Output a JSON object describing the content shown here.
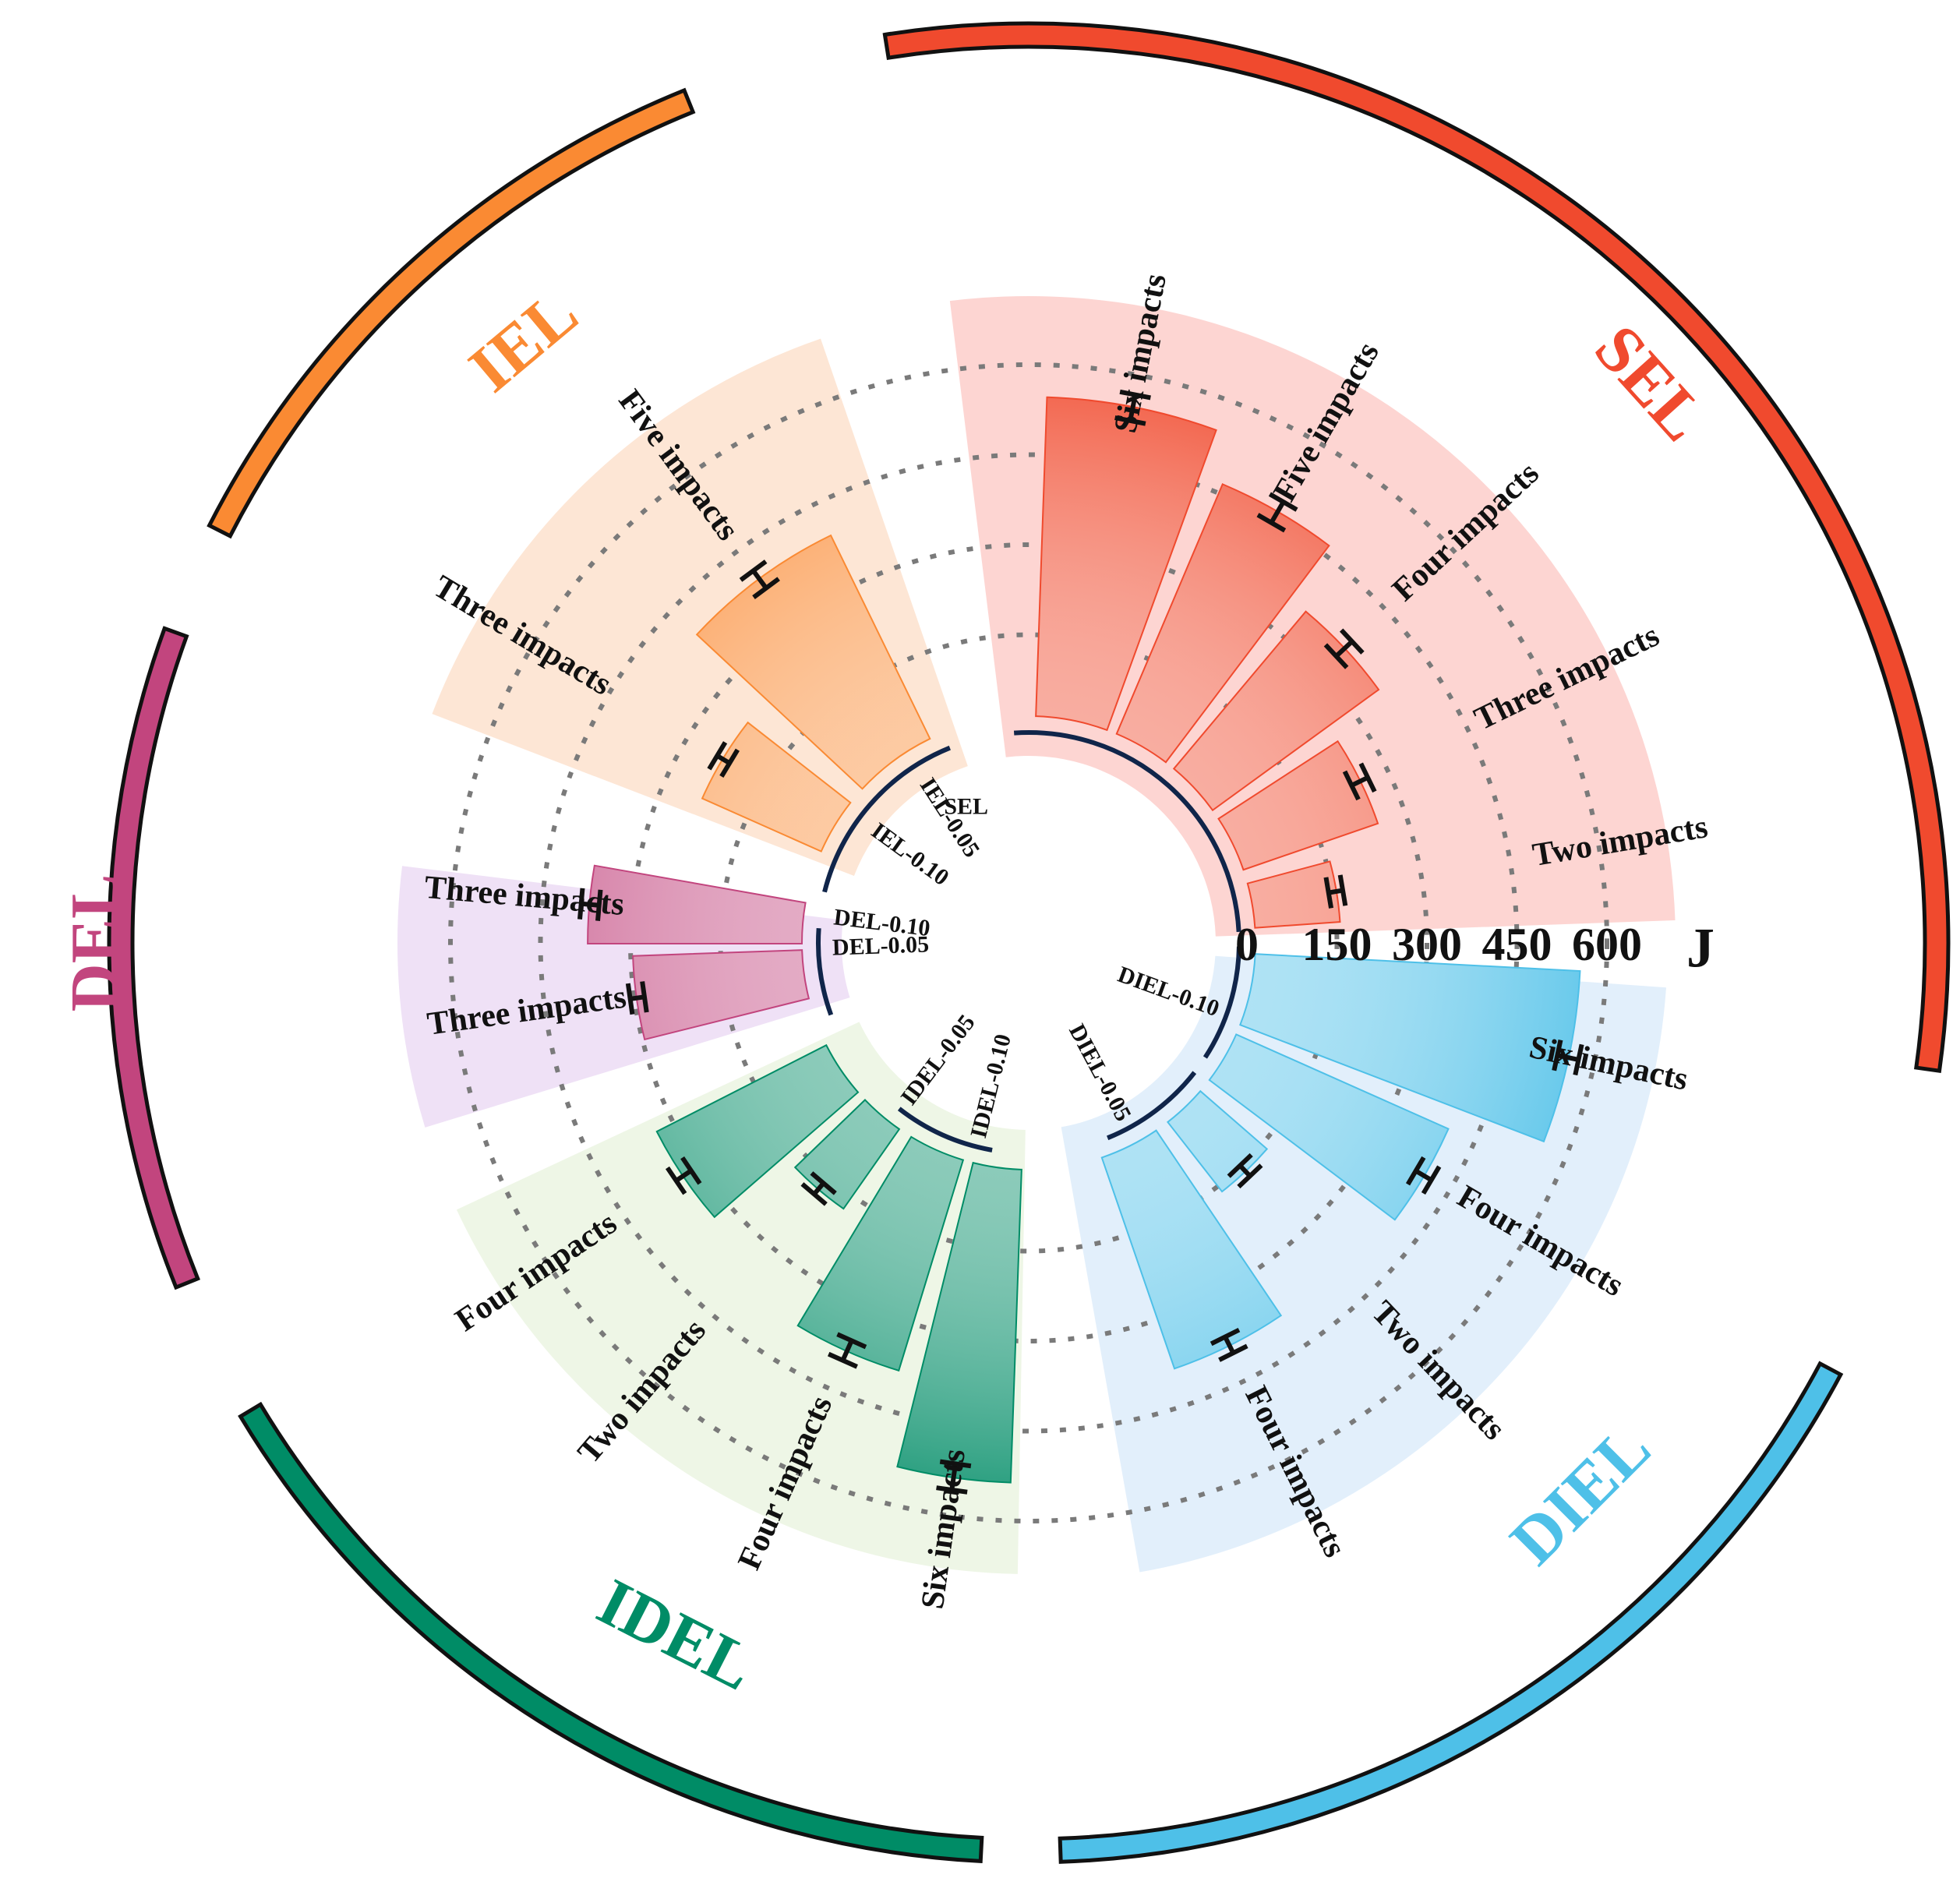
{
  "chart_data": {
    "type": "radial-bar",
    "unit_label": "J",
    "radial_ticks": [
      "0",
      "150",
      "300",
      "450",
      "600"
    ],
    "radial_tick_values": [
      0,
      150,
      300,
      450,
      600
    ],
    "grid": "dashed circles",
    "groups": [
      {
        "name": "SEL",
        "inner_labels": [
          "SEL"
        ],
        "color": "#F04A2E",
        "light_color": "#FDD3D0",
        "bars": [
          {
            "label": "Two impacts",
            "value": 155,
            "error": 12
          },
          {
            "label": "Three impacts",
            "value": 250,
            "error": 15
          },
          {
            "label": "Four impacts",
            "value": 355,
            "error": 18
          },
          {
            "label": "Five impacts",
            "value": 465,
            "error": 20
          },
          {
            "label": "Six impacts",
            "value": 545,
            "error": 22
          }
        ]
      },
      {
        "name": "DIEL",
        "inner_labels": [
          "DIEL-0.10",
          "DIEL-0.05"
        ],
        "color": "#4EC0E8",
        "light_color": "#E0EEFB",
        "bars": [
          {
            "label": "Six impacts",
            "value": 555,
            "error": 18
          },
          {
            "label": "Four impacts",
            "value": 400,
            "error": 15
          },
          {
            "label": "Two impacts",
            "value": 160,
            "error": 12
          },
          {
            "label": "Four impacts",
            "value": 385,
            "error": 15
          }
        ]
      },
      {
        "name": "IDEL",
        "inner_labels": [
          "IDEL-0.10",
          "IDEL-0.05"
        ],
        "color": "#008C66",
        "light_color": "#EDF6E5",
        "bars": [
          {
            "label": "Six impacts",
            "value": 535,
            "error": 22
          },
          {
            "label": "Four impacts",
            "value": 380,
            "error": 18
          },
          {
            "label": "Two impacts",
            "value": 175,
            "error": 12
          },
          {
            "label": "Four impacts",
            "value": 330,
            "error": 15
          }
        ]
      },
      {
        "name": "DEL",
        "inner_labels": [
          "DEL-0.10",
          "DEL-0.05"
        ],
        "color": "#C2457E",
        "light_color": "#EEDFF5",
        "bars": [
          {
            "label": "Three impacts",
            "value": 295,
            "error": 12
          },
          {
            "label": "Three impacts",
            "value": 370,
            "error": 15
          }
        ]
      },
      {
        "name": "IEL",
        "inner_labels": [
          "IEL-0.10",
          "IEL-0.05"
        ],
        "color": "#FA8A33",
        "light_color": "#FDE5D3",
        "bars": [
          {
            "label": "Three impacts",
            "value": 230,
            "error": 12
          },
          {
            "label": "Five impacts",
            "value": 390,
            "error": 18
          }
        ]
      }
    ]
  }
}
